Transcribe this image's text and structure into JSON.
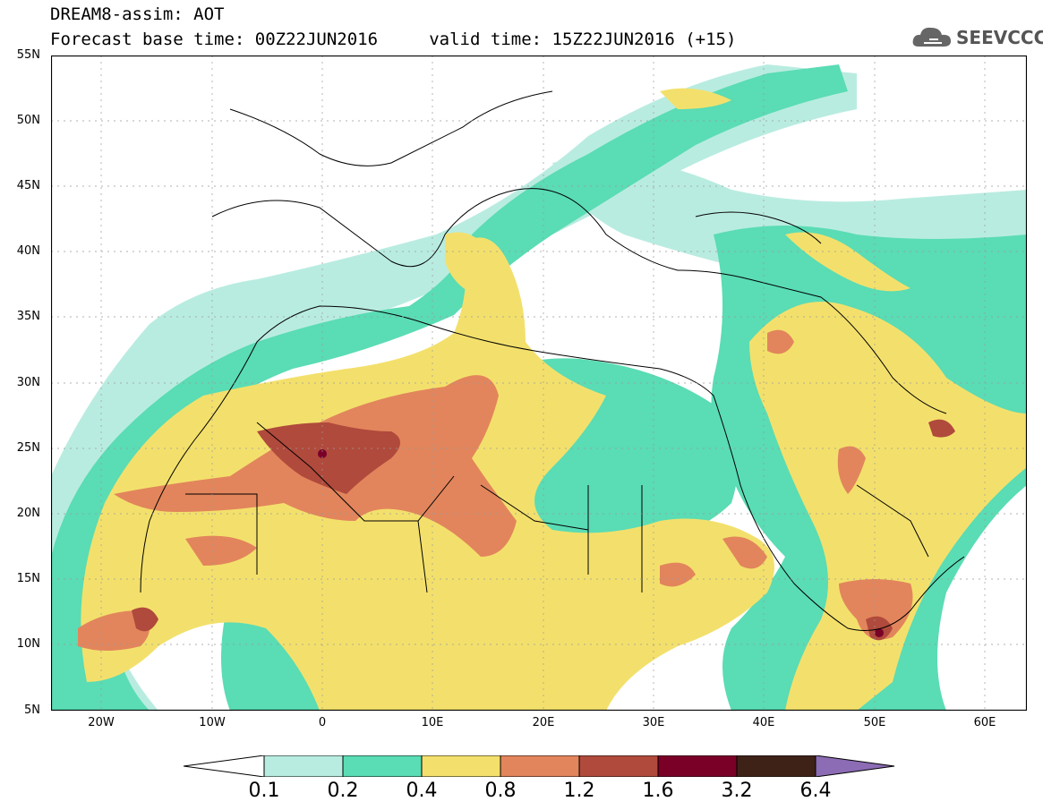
{
  "header": {
    "title_line1": "DREAM8-assim: AOT",
    "title_line2": "Forecast base time: 00Z22JUN2016     valid time: 15Z22JUN2016 (+15)"
  },
  "logo": {
    "text": "SEEVCCC",
    "icon": "cloud-icon"
  },
  "map": {
    "lat_labels": [
      "55N",
      "50N",
      "45N",
      "40N",
      "35N",
      "30N",
      "25N",
      "20N",
      "15N",
      "10N",
      "5N"
    ],
    "lon_labels": [
      "20W",
      "10W",
      "0",
      "10E",
      "20E",
      "30E",
      "40E",
      "50E",
      "60E"
    ]
  },
  "colorbar": {
    "labels": [
      "0.1",
      "0.2",
      "0.4",
      "0.8",
      "1.2",
      "1.6",
      "3.2",
      "6.4"
    ],
    "colors": [
      "#ffffff",
      "#b9ece0",
      "#5adcb4",
      "#f3e06c",
      "#e2855c",
      "#b04a3c",
      "#7a0028",
      "#3e2218",
      "#8c6cb4"
    ]
  },
  "palette": {
    "white": "#ffffff",
    "c1": "#b9ece0",
    "c2": "#5adcb4",
    "c3": "#f3e06c",
    "c4": "#e2855c",
    "c5": "#b04a3c",
    "c6": "#7a0028"
  }
}
